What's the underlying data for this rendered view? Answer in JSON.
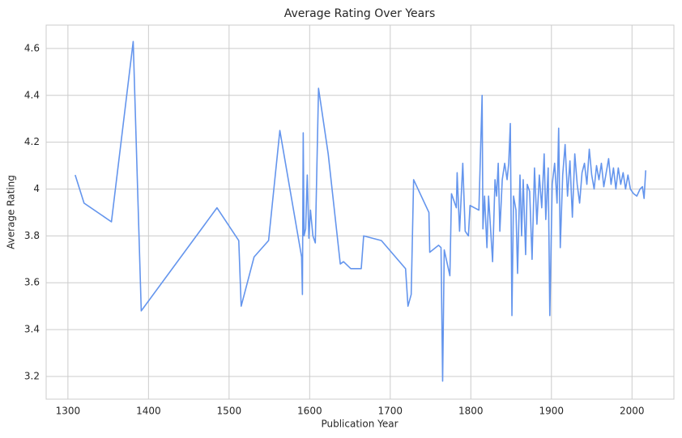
{
  "chart_data": {
    "type": "line",
    "title": "Average Rating Over Years",
    "xlabel": "Publication Year",
    "ylabel": "Average Rating",
    "color": "#6495ed",
    "grid": true,
    "xlim": [
      1273,
      2052
    ],
    "ylim": [
      3.103,
      4.7
    ],
    "xticks": [
      1300,
      1400,
      1500,
      1600,
      1700,
      1800,
      1900,
      2000
    ],
    "yticks": [
      3.2,
      3.4,
      3.6,
      3.8,
      4.0,
      4.2,
      4.4,
      4.6
    ],
    "x": [
      1309,
      1320,
      1354,
      1381,
      1391,
      1485,
      1512,
      1515,
      1531,
      1549,
      1563,
      1590,
      1591,
      1592,
      1593,
      1595,
      1597,
      1599,
      1601,
      1604,
      1607,
      1611,
      1623,
      1638,
      1642,
      1651,
      1664,
      1667,
      1689,
      1719,
      1722,
      1726,
      1729,
      1748,
      1749,
      1760,
      1763,
      1765,
      1767,
      1774,
      1776,
      1782,
      1783,
      1786,
      1790,
      1793,
      1797,
      1799,
      1810,
      1814,
      1815,
      1817,
      1820,
      1822,
      1827,
      1830,
      1832,
      1834,
      1836,
      1839,
      1842,
      1845,
      1847,
      1849,
      1851,
      1853,
      1856,
      1858,
      1861,
      1863,
      1865,
      1868,
      1870,
      1873,
      1876,
      1879,
      1882,
      1885,
      1888,
      1891,
      1893,
      1896,
      1898,
      1901,
      1904,
      1907,
      1909,
      1911,
      1914,
      1917,
      1920,
      1923,
      1926,
      1929,
      1932,
      1935,
      1938,
      1941,
      1944,
      1947,
      1950,
      1953,
      1956,
      1959,
      1962,
      1965,
      1968,
      1971,
      1974,
      1977,
      1980,
      1983,
      1986,
      1989,
      1992,
      1995,
      1998,
      2002,
      2006,
      2010,
      2013,
      2015,
      2017
    ],
    "values": [
      4.06,
      3.94,
      3.86,
      4.63,
      3.48,
      3.92,
      3.78,
      3.5,
      3.71,
      3.78,
      4.25,
      3.71,
      3.55,
      4.24,
      3.8,
      3.83,
      4.06,
      3.79,
      3.91,
      3.8,
      3.77,
      4.43,
      4.15,
      3.68,
      3.69,
      3.66,
      3.66,
      3.8,
      3.78,
      3.66,
      3.5,
      3.55,
      4.04,
      3.9,
      3.73,
      3.76,
      3.75,
      3.18,
      3.74,
      3.63,
      3.98,
      3.92,
      4.07,
      3.82,
      4.11,
      3.82,
      3.8,
      3.93,
      3.91,
      4.4,
      3.83,
      3.97,
      3.75,
      3.97,
      3.69,
      4.04,
      3.97,
      4.11,
      3.82,
      4.04,
      4.11,
      4.04,
      4.11,
      4.28,
      3.46,
      3.97,
      3.91,
      3.64,
      4.06,
      3.8,
      4.04,
      3.72,
      4.02,
      3.99,
      3.7,
      4.09,
      3.85,
      4.06,
      3.92,
      4.15,
      3.87,
      4.09,
      3.46,
      4.02,
      4.11,
      3.94,
      4.26,
      3.75,
      4.06,
      4.19,
      3.97,
      4.12,
      3.88,
      4.15,
      4.02,
      3.94,
      4.07,
      4.11,
      4.02,
      4.17,
      4.06,
      4.0,
      4.1,
      4.04,
      4.11,
      4.01,
      4.07,
      4.13,
      4.02,
      4.09,
      4.0,
      4.09,
      4.02,
      4.07,
      4.0,
      4.06,
      4.0,
      3.98,
      3.97,
      4.0,
      4.01,
      3.96,
      4.08
    ]
  }
}
